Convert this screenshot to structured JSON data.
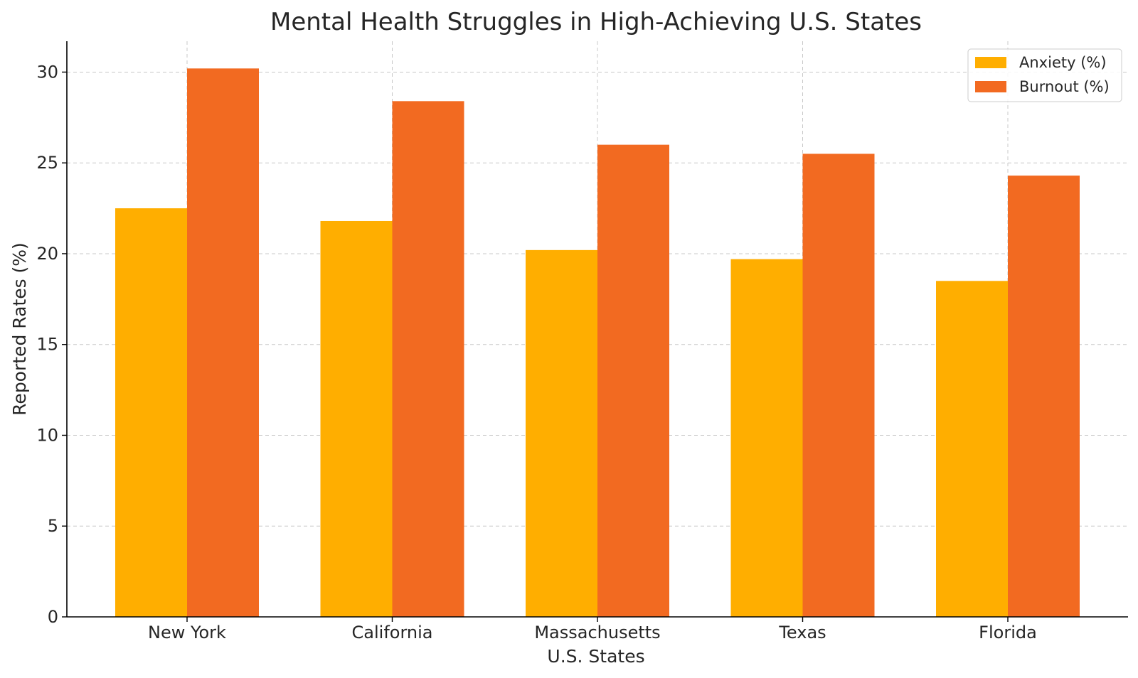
{
  "chart_data": {
    "type": "bar",
    "title": "Mental Health Struggles in High-Achieving U.S. States",
    "xlabel": "U.S. States",
    "ylabel": "Reported Rates (%)",
    "categories": [
      "New York",
      "California",
      "Massachusetts",
      "Texas",
      "Florida"
    ],
    "series": [
      {
        "name": "Anxiety (%)",
        "values": [
          22.5,
          21.8,
          20.2,
          19.7,
          18.5
        ],
        "color": "#FFAE00"
      },
      {
        "name": "Burnout (%)",
        "values": [
          30.2,
          28.4,
          26.0,
          25.5,
          24.3
        ],
        "color": "#F26A21"
      }
    ],
    "ylim": [
      0,
      31.7
    ],
    "yticks": [
      0,
      5,
      10,
      15,
      20,
      25,
      30
    ],
    "grid": true,
    "legend_position": "top-right"
  }
}
